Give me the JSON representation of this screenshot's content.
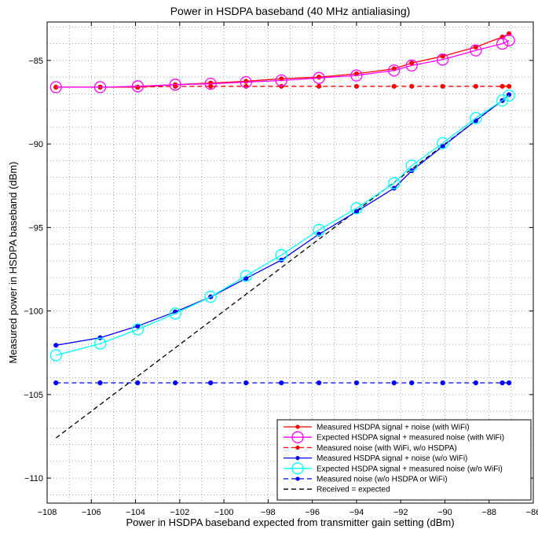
{
  "chart_data": {
    "type": "line",
    "title": "Power in HSDPA baseband (40 MHz antialiasing)",
    "xlabel": "Power in HSDPA baseband expected from transmitter gain setting (dBm)",
    "ylabel": "Measured power in HSDPA baseband (dBm)",
    "xlim": [
      -108,
      -86
    ],
    "ylim": [
      -111.5,
      -82.7
    ],
    "xticks": [
      -108,
      -106,
      -104,
      -102,
      -100,
      -98,
      -96,
      -94,
      -92,
      -90,
      -88,
      -86
    ],
    "yticks": [
      -110,
      -105,
      -100,
      -95,
      -90,
      -85
    ],
    "xtick_labels": [
      "−108",
      "−106",
      "−104",
      "−102",
      "−100",
      "−98",
      "−96",
      "−94",
      "−92",
      "−90",
      "−88",
      "−86"
    ],
    "ytick_labels": [
      "−110",
      "−105",
      "−100",
      "−95",
      "−90",
      "−85"
    ],
    "grid": true,
    "legend_position": "bottom-right",
    "x": [
      -107.6,
      -105.6,
      -103.9,
      -102.2,
      -100.6,
      -99.0,
      -97.4,
      -95.7,
      -94.0,
      -92.3,
      -91.5,
      -90.1,
      -88.6,
      -87.4,
      -87.1
    ],
    "series": [
      {
        "name": "Measured HSDPA signal + noise (with WiFi)",
        "color": "#ff0000",
        "style": "solid",
        "marker": "dot",
        "values": [
          -86.6,
          -86.6,
          -86.6,
          -86.45,
          -86.35,
          -86.25,
          -86.1,
          -86.0,
          -85.8,
          -85.5,
          -85.15,
          -84.75,
          -84.2,
          -83.6,
          -83.4
        ]
      },
      {
        "name": "Expected HSDPA signal + measured noise (with WiFi)",
        "color": "#ff00ff",
        "style": "solid",
        "marker": "circle",
        "values": [
          -86.6,
          -86.6,
          -86.55,
          -86.45,
          -86.4,
          -86.3,
          -86.2,
          -86.05,
          -85.9,
          -85.6,
          -85.3,
          -84.95,
          -84.4,
          -84.0,
          -83.8
        ]
      },
      {
        "name": "Measured noise (with WiFi, w/o HSDPA)",
        "color": "#ff0000",
        "style": "dashed",
        "marker": "dot",
        "values": [
          -86.6,
          -86.6,
          -86.6,
          -86.55,
          -86.55,
          -86.55,
          -86.55,
          -86.55,
          -86.55,
          -86.55,
          -86.55,
          -86.55,
          -86.55,
          -86.55,
          -86.55
        ]
      },
      {
        "name": "Measured HSDPA signal + noise (w/o WiFi)",
        "color": "#0000ff",
        "style": "solid",
        "marker": "dot",
        "values": [
          -102.05,
          -101.6,
          -100.9,
          -100.05,
          -99.15,
          -98.05,
          -96.95,
          -95.4,
          -94.05,
          -92.65,
          -91.6,
          -90.15,
          -88.6,
          -87.4,
          -87.05
        ]
      },
      {
        "name": "Expected HSDPA signal + measured noise (w/o WiFi)",
        "color": "#00ffff",
        "style": "solid",
        "marker": "circle",
        "values": [
          -102.65,
          -101.95,
          -101.1,
          -100.15,
          -99.15,
          -97.9,
          -96.65,
          -95.15,
          -93.85,
          -92.35,
          -91.3,
          -89.95,
          -88.45,
          -87.4,
          -87.1
        ]
      },
      {
        "name": "Measured noise (w/o HSDPA or WiFi)",
        "color": "#0000ff",
        "style": "dashed",
        "marker": "dot",
        "values": [
          -104.3,
          -104.3,
          -104.3,
          -104.3,
          -104.3,
          -104.3,
          -104.3,
          -104.3,
          -104.3,
          -104.3,
          -104.3,
          -104.3,
          -104.3,
          -104.3,
          -104.3
        ]
      },
      {
        "name": "Received = expected",
        "color": "#000000",
        "style": "dashed",
        "marker": "none",
        "x": [
          -107.6,
          -87.1
        ],
        "values": [
          -107.6,
          -87.1
        ]
      }
    ]
  }
}
